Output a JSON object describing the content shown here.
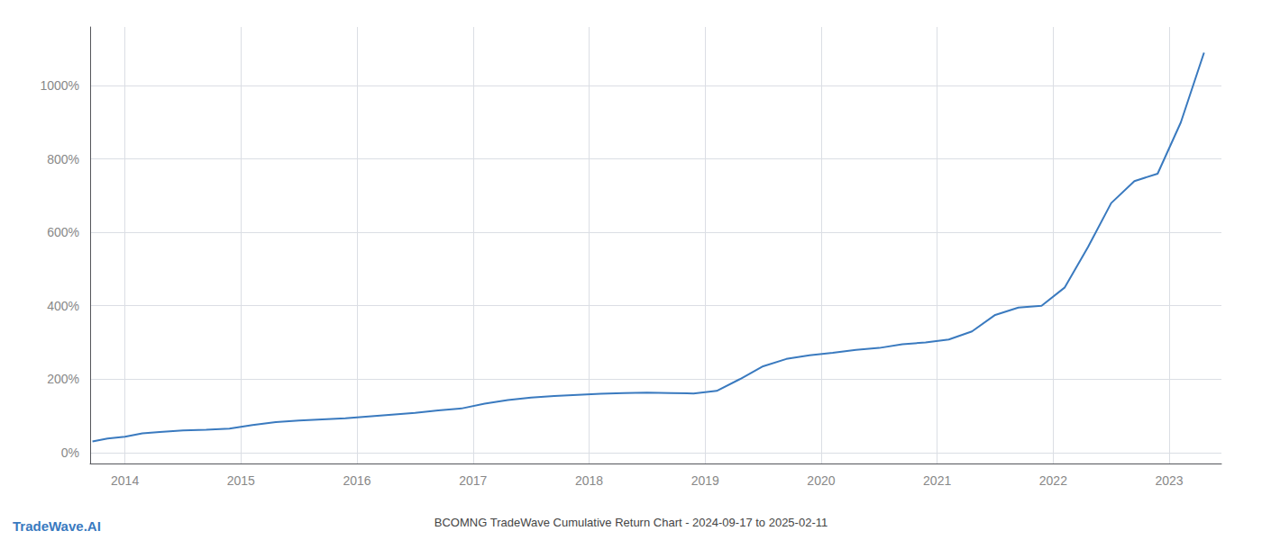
{
  "chart_data": {
    "type": "line",
    "title": "BCOMNG TradeWave Cumulative Return Chart - 2024-09-17 to 2025-02-11",
    "annotations": [
      "TradeWave.AI"
    ],
    "color": "#3a7abf",
    "x": [
      2013.72,
      2013.85,
      2014.0,
      2014.15,
      2014.3,
      2014.5,
      2014.7,
      2014.9,
      2015.1,
      2015.3,
      2015.5,
      2015.7,
      2015.9,
      2016.1,
      2016.3,
      2016.5,
      2016.7,
      2016.9,
      2017.1,
      2017.3,
      2017.5,
      2017.7,
      2017.9,
      2018.1,
      2018.3,
      2018.5,
      2018.7,
      2018.9,
      2019.1,
      2019.3,
      2019.5,
      2019.7,
      2019.9,
      2020.1,
      2020.3,
      2020.5,
      2020.7,
      2020.9,
      2021.1,
      2021.3,
      2021.5,
      2021.7,
      2021.9,
      2022.1,
      2022.3,
      2022.5,
      2022.7,
      2022.9,
      2023.1,
      2023.3
    ],
    "values": [
      30,
      38,
      43,
      52,
      56,
      60,
      62,
      65,
      75,
      83,
      87,
      90,
      93,
      98,
      103,
      108,
      115,
      120,
      133,
      143,
      150,
      154,
      157,
      160,
      162,
      163,
      162,
      161,
      168,
      200,
      235,
      255,
      265,
      272,
      280,
      285,
      295,
      300,
      308,
      330,
      375,
      395,
      400,
      450,
      560,
      680,
      740,
      760,
      900,
      1090
    ],
    "xlim": [
      2013.7,
      2023.45
    ],
    "xticks": [
      2014,
      2015,
      2016,
      2017,
      2018,
      2019,
      2020,
      2021,
      2022,
      2023
    ],
    "ylim": [
      -30,
      1160
    ],
    "yticks": [
      {
        "value": 0,
        "label": "0%"
      },
      {
        "value": 200,
        "label": "200%"
      },
      {
        "value": 400,
        "label": "400%"
      },
      {
        "value": 600,
        "label": "600%"
      },
      {
        "value": 800,
        "label": "800%"
      },
      {
        "value": 1000,
        "label": "1000%"
      }
    ],
    "grid": true
  }
}
